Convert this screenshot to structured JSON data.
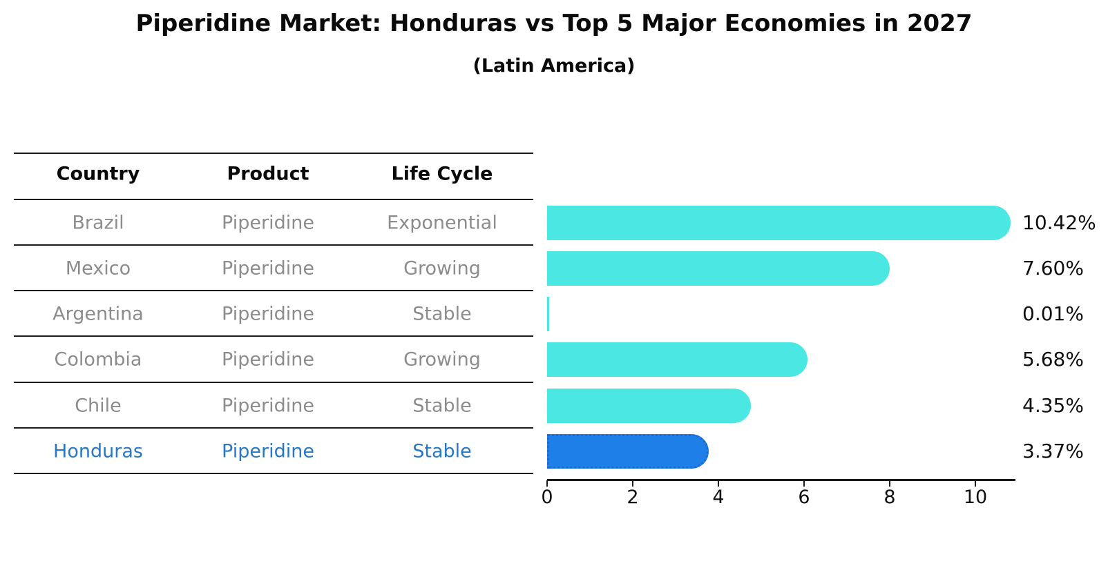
{
  "title": "Piperidine Market: Honduras vs Top 5 Major Economies in 2027",
  "subtitle": "(Latin America)",
  "table": {
    "headers": [
      "Country",
      "Product",
      "Life Cycle"
    ],
    "rows": [
      {
        "country": "Brazil",
        "product": "Piperidine",
        "life_cycle": "Exponential",
        "highlight": false
      },
      {
        "country": "Mexico",
        "product": "Piperidine",
        "life_cycle": "Growing",
        "highlight": false
      },
      {
        "country": "Argentina",
        "product": "Piperidine",
        "life_cycle": "Stable",
        "highlight": false
      },
      {
        "country": "Colombia",
        "product": "Piperidine",
        "life_cycle": "Growing",
        "highlight": false
      },
      {
        "country": "Chile",
        "product": "Piperidine",
        "life_cycle": "Stable",
        "highlight": false
      },
      {
        "country": "Honduras",
        "product": "Piperidine",
        "life_cycle": "Stable",
        "highlight": true
      }
    ]
  },
  "chart_data": {
    "type": "bar",
    "orientation": "horizontal",
    "title": "Piperidine Market: Honduras vs Top 5 Major Economies in 2027",
    "subtitle": "(Latin America)",
    "categories": [
      "Brazil",
      "Mexico",
      "Argentina",
      "Colombia",
      "Chile",
      "Honduras"
    ],
    "values": [
      10.42,
      7.6,
      0.01,
      5.68,
      4.35,
      3.37
    ],
    "value_labels": [
      "10.42%",
      "7.60%",
      "0.01%",
      "5.68%",
      "4.35%",
      "3.37%"
    ],
    "x_ticks": [
      0,
      2,
      4,
      6,
      8,
      10
    ],
    "xlim": [
      0,
      10.94
    ],
    "grid": false,
    "legend": "none",
    "highlight_index": 5,
    "colors": {
      "bar": "#4AE7E3",
      "highlight_bar": "#1E7FE9",
      "highlight_border": "#1A6AD2",
      "highlight_text": "#2878C7",
      "row_text": "#8C8C8C",
      "axis": "#1a1a1a",
      "label_text": "#0f0f0f"
    }
  }
}
